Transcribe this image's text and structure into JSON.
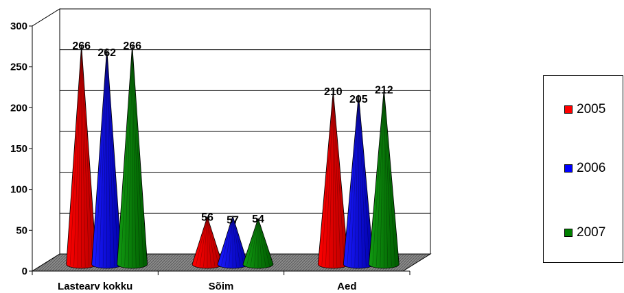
{
  "chart_data": {
    "type": "bar",
    "style": "3d-cone",
    "categories": [
      "Lastearv kokku",
      "Sõim",
      "Aed"
    ],
    "series": [
      {
        "name": "2005",
        "color": "#ff0000",
        "values": [
          266,
          56,
          210
        ]
      },
      {
        "name": "2006",
        "color": "#0000ff",
        "values": [
          262,
          57,
          205
        ]
      },
      {
        "name": "2007",
        "color": "#008000",
        "values": [
          266,
          54,
          212
        ]
      }
    ],
    "yticks": [
      "0",
      "50",
      "100",
      "150",
      "200",
      "250",
      "300"
    ],
    "ylim": [
      0,
      300
    ],
    "grid": true,
    "legend": "right"
  }
}
